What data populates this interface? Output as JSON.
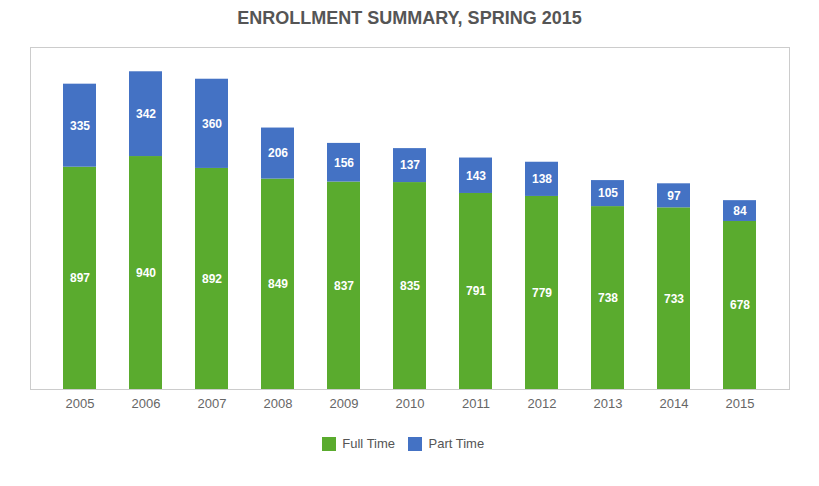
{
  "chart_data": {
    "type": "bar",
    "title": "ENROLLMENT SUMMARY, SPRING 2015",
    "categories": [
      "2005",
      "2006",
      "2007",
      "2008",
      "2009",
      "2010",
      "2011",
      "2012",
      "2013",
      "2014",
      "2015"
    ],
    "series": [
      {
        "name": "Full Time",
        "color": "#5aab2e",
        "values": [
          897,
          940,
          892,
          849,
          837,
          835,
          791,
          779,
          738,
          733,
          678
        ]
      },
      {
        "name": "Part Time",
        "color": "#4472c4",
        "values": [
          335,
          342,
          360,
          206,
          156,
          137,
          143,
          138,
          105,
          97,
          84
        ]
      }
    ],
    "stacked": true,
    "data_labels": true,
    "ylim": [
      0,
      1380
    ],
    "tick_labels": "x",
    "legend": "bottom",
    "grid": false
  }
}
